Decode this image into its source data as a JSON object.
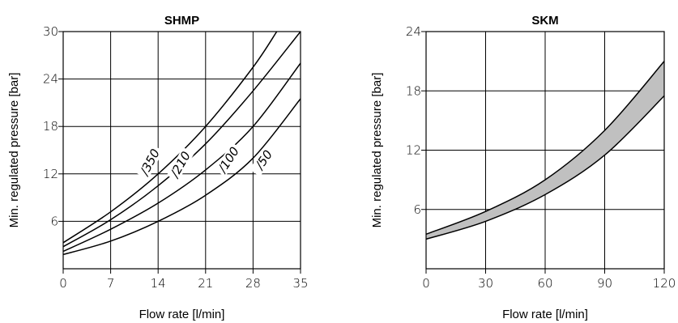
{
  "chart_data": [
    {
      "type": "line",
      "title": "SHMP",
      "xlabel": "Flow rate [l/min]",
      "ylabel": "Min. regulated pressure [bar]",
      "xlim": [
        0,
        35
      ],
      "ylim": [
        0,
        30
      ],
      "xticks": [
        "0",
        "7",
        "14",
        "21",
        "28",
        "35"
      ],
      "yticks": [
        "6",
        "12",
        "18",
        "24",
        "30"
      ],
      "grid": true,
      "series": [
        {
          "name": "/350",
          "x": [
            0,
            7,
            14,
            21,
            28,
            31.5
          ],
          "y": [
            3.3,
            7.2,
            12.0,
            18.0,
            25.5,
            30.0
          ]
        },
        {
          "name": "/210",
          "x": [
            0,
            7,
            14,
            21,
            28,
            35
          ],
          "y": [
            2.8,
            6.2,
            10.5,
            15.8,
            22.5,
            30.0
          ]
        },
        {
          "name": "/100",
          "x": [
            0,
            7,
            14,
            21,
            28,
            35
          ],
          "y": [
            2.2,
            5.0,
            8.3,
            12.5,
            18.0,
            26.0
          ]
        },
        {
          "name": "/50",
          "x": [
            0,
            7,
            14,
            21,
            28,
            35
          ],
          "y": [
            1.8,
            3.5,
            6.0,
            9.3,
            14.0,
            21.5
          ]
        }
      ]
    },
    {
      "type": "area",
      "title": "SKM",
      "xlabel": "Flow rate [l/min]",
      "ylabel": "Min. regulated pressure [bar]",
      "xlim": [
        0,
        120
      ],
      "ylim": [
        0,
        24
      ],
      "xticks": [
        "0",
        "30",
        "60",
        "90",
        "120"
      ],
      "yticks": [
        "6",
        "12",
        "18",
        "24"
      ],
      "grid": true,
      "band_color": "#c0c0c0",
      "upper": {
        "x": [
          0,
          30,
          60,
          90,
          120
        ],
        "y": [
          3.5,
          5.8,
          9.0,
          14.0,
          21.0
        ]
      },
      "lower": {
        "x": [
          0,
          30,
          60,
          90,
          120
        ],
        "y": [
          3.0,
          4.8,
          7.5,
          11.5,
          17.5
        ]
      }
    }
  ]
}
